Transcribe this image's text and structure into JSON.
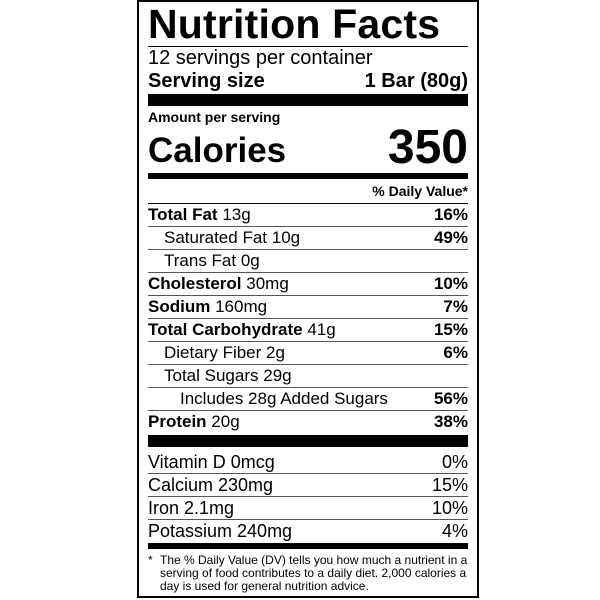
{
  "title": "Nutrition Facts",
  "servings_per_container": "12 servings per container",
  "serving_size": {
    "label": "Serving size",
    "value": "1 Bar (80g)"
  },
  "amount_per_serving": "Amount per serving",
  "calories": {
    "label": "Calories",
    "value": "350"
  },
  "daily_value_header": "% Daily Value*",
  "nutrients": [
    {
      "name": "Total Fat",
      "amount": "13g",
      "dv": "16%"
    },
    {
      "name": "Saturated Fat",
      "amount": "10g",
      "dv": "49%"
    },
    {
      "name": "Trans Fat",
      "amount": "0g",
      "dv": ""
    },
    {
      "name": "Cholesterol",
      "amount": "30mg",
      "dv": "10%"
    },
    {
      "name": "Sodium",
      "amount": "160mg",
      "dv": "7%"
    },
    {
      "name": "Total Carbohydrate",
      "amount": "41g",
      "dv": "15%"
    },
    {
      "name": "Dietary Fiber",
      "amount": "2g",
      "dv": "6%"
    },
    {
      "name": "Total Sugars",
      "amount": "29g",
      "dv": ""
    },
    {
      "name": "Includes 28g Added Sugars",
      "amount": "",
      "dv": "56%"
    },
    {
      "name": "Protein",
      "amount": "20g",
      "dv": "38%"
    }
  ],
  "vitamins": [
    {
      "name": "Vitamin D 0mcg",
      "dv": "0%"
    },
    {
      "name": "Calcium 230mg",
      "dv": "15%"
    },
    {
      "name": "Iron 2.1mg",
      "dv": "10%"
    },
    {
      "name": "Potassium 240mg",
      "dv": "4%"
    }
  ],
  "footnote": {
    "star": "*",
    "text": "The % Daily Value (DV) tells you how much a nutrient in a serving of food contributes to a daily diet. 2,000 calories a day is used for general nutrition advice."
  }
}
